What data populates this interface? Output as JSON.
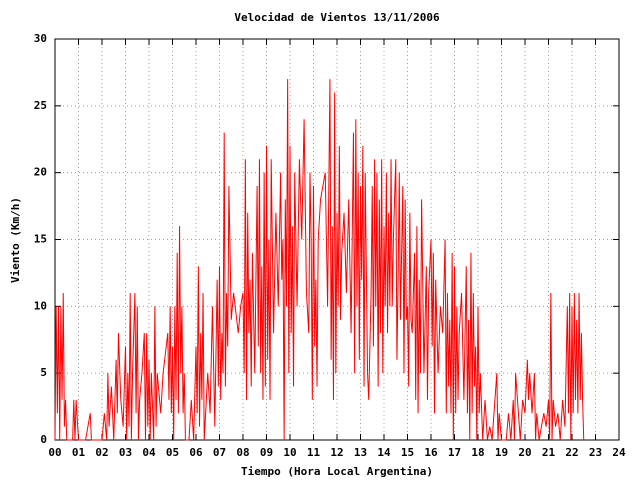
{
  "chart_data": {
    "type": "line",
    "title": "Velocidad de Vientos 13/11/2006",
    "xlabel": "Tiempo (Hora Local Argentina)",
    "ylabel": "Viento (Km/h)",
    "grid": true,
    "xlim": [
      0,
      24
    ],
    "ylim": [
      0,
      30
    ],
    "xticks": [
      {
        "value": 0,
        "label": "00"
      },
      {
        "value": 1,
        "label": "01"
      },
      {
        "value": 2,
        "label": "02"
      },
      {
        "value": 3,
        "label": "03"
      },
      {
        "value": 4,
        "label": "04"
      },
      {
        "value": 5,
        "label": "05"
      },
      {
        "value": 6,
        "label": "06"
      },
      {
        "value": 7,
        "label": "07"
      },
      {
        "value": 8,
        "label": "08"
      },
      {
        "value": 9,
        "label": "09"
      },
      10,
      11,
      12,
      13,
      14,
      15,
      16,
      17,
      18,
      19,
      20,
      21,
      22,
      23,
      24
    ],
    "yticks": [
      0,
      5,
      10,
      15,
      20,
      25,
      30
    ],
    "series": [
      {
        "color": "#ff0000",
        "x": [
          0,
          0.05,
          0.1,
          0.15,
          0.2,
          0.25,
          0.3,
          0.35,
          0.4,
          0.45,
          0.5,
          0.6,
          0.75,
          0.8,
          0.85,
          0.9,
          1.0,
          1.3,
          1.5,
          1.55,
          2.0,
          2.1,
          2.2,
          2.25,
          2.3,
          2.4,
          2.5,
          2.6,
          2.65,
          2.7,
          2.8,
          2.9,
          3.0,
          3.05,
          3.1,
          3.15,
          3.2,
          3.25,
          3.3,
          3.4,
          3.45,
          3.5,
          3.55,
          3.6,
          3.7,
          3.8,
          3.85,
          3.9,
          3.95,
          4.0,
          4.05,
          4.1,
          4.2,
          4.25,
          4.3,
          4.35,
          4.5,
          4.6,
          4.8,
          4.85,
          4.9,
          4.95,
          5.0,
          5.05,
          5.1,
          5.15,
          5.2,
          5.25,
          5.3,
          5.35,
          5.4,
          5.45,
          5.5,
          5.55,
          5.7,
          5.8,
          5.9,
          6.0,
          6.05,
          6.1,
          6.15,
          6.2,
          6.25,
          6.3,
          6.35,
          6.5,
          6.6,
          6.7,
          6.8,
          6.9,
          6.95,
          7.0,
          7.05,
          7.1,
          7.15,
          7.2,
          7.25,
          7.3,
          7.35,
          7.4,
          7.5,
          7.6,
          7.8,
          7.9,
          8.0,
          8.05,
          8.1,
          8.15,
          8.2,
          8.25,
          8.3,
          8.35,
          8.4,
          8.5,
          8.6,
          8.65,
          8.7,
          8.75,
          8.8,
          8.85,
          8.9,
          8.95,
          9.0,
          9.05,
          9.1,
          9.15,
          9.2,
          9.3,
          9.4,
          9.5,
          9.6,
          9.65,
          9.7,
          9.75,
          9.8,
          9.85,
          9.9,
          9.95,
          10.0,
          10.05,
          10.1,
          10.15,
          10.2,
          10.3,
          10.4,
          10.5,
          10.6,
          10.7,
          10.8,
          10.85,
          10.9,
          10.95,
          11.0,
          11.05,
          11.1,
          11.15,
          11.2,
          11.3,
          11.5,
          11.6,
          11.7,
          11.75,
          11.8,
          11.85,
          11.9,
          11.95,
          12.0,
          12.05,
          12.1,
          12.15,
          12.2,
          12.3,
          12.4,
          12.5,
          12.6,
          12.7,
          12.75,
          12.8,
          12.85,
          12.9,
          12.95,
          13.0,
          13.05,
          13.1,
          13.15,
          13.2,
          13.3,
          13.35,
          13.45,
          13.5,
          13.55,
          13.6,
          13.65,
          13.7,
          13.75,
          13.8,
          13.85,
          13.9,
          13.95,
          14.0,
          14.05,
          14.1,
          14.15,
          14.2,
          14.25,
          14.3,
          14.35,
          14.4,
          14.5,
          14.55,
          14.6,
          14.65,
          14.7,
          14.8,
          14.85,
          14.9,
          14.95,
          15.0,
          15.05,
          15.1,
          15.15,
          15.2,
          15.3,
          15.35,
          15.4,
          15.45,
          15.5,
          15.55,
          15.6,
          15.7,
          15.8,
          15.85,
          15.9,
          16.0,
          16.05,
          16.1,
          16.15,
          16.2,
          16.3,
          16.4,
          16.5,
          16.6,
          16.65,
          16.7,
          16.75,
          16.8,
          16.85,
          16.9,
          16.95,
          17.0,
          17.05,
          17.1,
          17.15,
          17.2,
          17.3,
          17.4,
          17.5,
          17.55,
          17.6,
          17.65,
          17.7,
          17.75,
          17.8,
          17.85,
          17.9,
          17.95,
          18.0,
          18.05,
          18.1,
          18.2,
          18.3,
          18.4,
          18.5,
          18.6,
          18.8,
          18.85,
          18.9,
          19.0,
          19.2,
          19.3,
          19.4,
          19.5,
          19.55,
          19.6,
          19.8,
          19.9,
          20.0,
          20.1,
          20.15,
          20.2,
          20.3,
          20.4,
          20.45,
          20.5,
          20.6,
          20.8,
          20.9,
          21.0,
          21.05,
          21.1,
          21.15,
          21.2,
          21.3,
          21.4,
          21.5,
          21.6,
          21.7,
          21.8,
          21.85,
          21.9,
          21.95,
          22.0,
          22.05,
          22.1,
          22.15,
          22.2,
          22.25,
          22.3,
          22.35,
          22.4,
          22.45,
          22.5
        ],
        "values": [
          0,
          10,
          2,
          10,
          0,
          10,
          3,
          11,
          1,
          3,
          0,
          0,
          0,
          3,
          0,
          3,
          0,
          0,
          2,
          0,
          0,
          2,
          0,
          5,
          1,
          4,
          0,
          6,
          2,
          8,
          3,
          1,
          7,
          0,
          5,
          1,
          11,
          0,
          5,
          11,
          2,
          10,
          0,
          3,
          5,
          8,
          0,
          8,
          1,
          6,
          0,
          5,
          0,
          10,
          1,
          5,
          2,
          5,
          8,
          3,
          10,
          2,
          7,
          0,
          10,
          3,
          14,
          2,
          16,
          5,
          10,
          2,
          5,
          0,
          0,
          3,
          0,
          7,
          2,
          13,
          1,
          8,
          3,
          11,
          0,
          5,
          2,
          10,
          1,
          12,
          4,
          13,
          3,
          8,
          5,
          23,
          4,
          11,
          7,
          19,
          9,
          11,
          8,
          10,
          11,
          5,
          21,
          3,
          17,
          8,
          12,
          4,
          14,
          5,
          19,
          7,
          21,
          5,
          13,
          3,
          20,
          4,
          22,
          6,
          15,
          3,
          21,
          8,
          17,
          10,
          20,
          12,
          15,
          0,
          18,
          10,
          27,
          5,
          22,
          8,
          16,
          4,
          20,
          10,
          21,
          15,
          24,
          11,
          8,
          20,
          15,
          3,
          19,
          7,
          12,
          4,
          15,
          18,
          20,
          10,
          27,
          6,
          16,
          3,
          26,
          5,
          17,
          10,
          22,
          9,
          14,
          17,
          11,
          18,
          8,
          23,
          5,
          24,
          10,
          20,
          6,
          19,
          12,
          22,
          4,
          20,
          5,
          3,
          11,
          19,
          7,
          21,
          10,
          20,
          4,
          18,
          8,
          21,
          5,
          16,
          10,
          20,
          8,
          17,
          10,
          21,
          10,
          15,
          21,
          6,
          12,
          20,
          9,
          19,
          5,
          18,
          9,
          10,
          4,
          17,
          9,
          8,
          14,
          3,
          16,
          2,
          12,
          5,
          18,
          5,
          13,
          3,
          11,
          15,
          7,
          14,
          2,
          12,
          5,
          10,
          8,
          15,
          2,
          11,
          4,
          9,
          2,
          14,
          0,
          13,
          2,
          10,
          3,
          8,
          11,
          3,
          13,
          2,
          9,
          0,
          14,
          2,
          11,
          4,
          7,
          0,
          10,
          2,
          5,
          0,
          3,
          0,
          1,
          0,
          5,
          0,
          2,
          0,
          0,
          2,
          0,
          3,
          0,
          5,
          0,
          3,
          2,
          6,
          3,
          5,
          2,
          5,
          0,
          2,
          0,
          2,
          1,
          3,
          0,
          11,
          0,
          3,
          1,
          2,
          0,
          3,
          1,
          10,
          2,
          11,
          0,
          10,
          2,
          11,
          3,
          9,
          2,
          11,
          3,
          8,
          3,
          0
        ]
      }
    ]
  }
}
